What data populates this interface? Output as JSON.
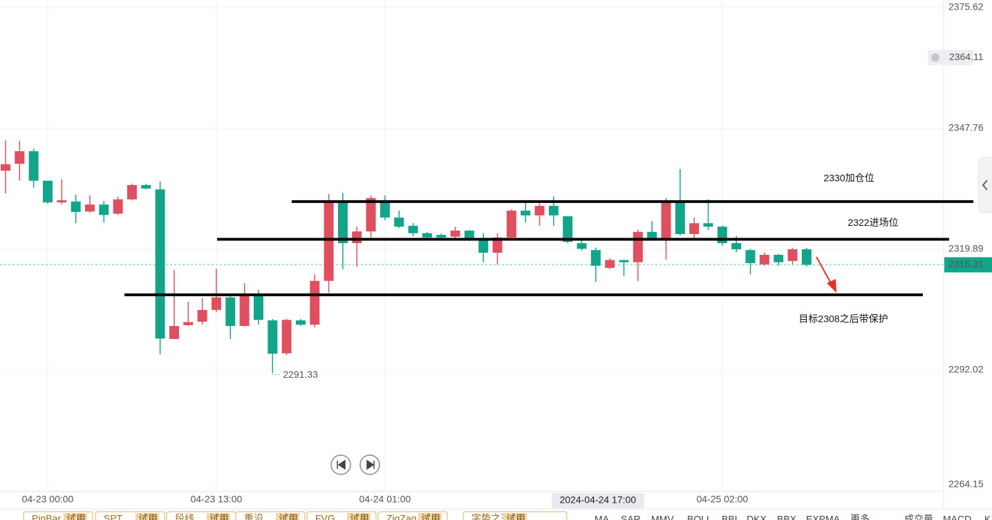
{
  "chart_data": {
    "type": "candlestick",
    "categories": [
      null,
      null,
      null,
      "04-23 00:00",
      null,
      null,
      null,
      null,
      null,
      null,
      null,
      null,
      null,
      null,
      null,
      "04-23 13:00",
      null,
      null,
      null,
      null,
      null,
      null,
      null,
      null,
      null,
      null,
      null,
      "04-24 01:00",
      null,
      null,
      null,
      null,
      null,
      null,
      null,
      null,
      null,
      null,
      null,
      null,
      null,
      null,
      null,
      null,
      null,
      null,
      null,
      null,
      null,
      null,
      null,
      "04-25 02:00",
      null,
      null,
      null,
      null,
      null,
      null
    ],
    "open": [
      2338.0,
      2339.6,
      2342.5,
      2335.7,
      2330.7,
      2330.9,
      2328.6,
      2330.2,
      2328.1,
      2331.4,
      2334.7,
      2333.7,
      2299.2,
      2302.4,
      2303.2,
      2305.9,
      2308.8,
      2302.2,
      2309.4,
      2303.5,
      2295.9,
      2303.5,
      2302.5,
      2312.6,
      2330.9,
      2321.3,
      2324.0,
      2331.2,
      2327.2,
      2325.3,
      2323.6,
      2323.2,
      2322.8,
      2324.2,
      2322.0,
      2319.1,
      2322.6,
      2328.8,
      2327.7,
      2329.9,
      2327.5,
      2321.3,
      2319.7,
      2315.6,
      2317.4,
      2316.9,
      2323.9,
      2322.4,
      2330.9,
      2323.4,
      2325.9,
      2325.1,
      2321.3,
      2319.7,
      2316.4,
      2318.6,
      2317.2,
      2319.9
    ],
    "high": [
      2345.0,
      2344.9,
      2343.1,
      2335.7,
      2336.0,
      2332.5,
      2332.3,
      2331.0,
      2332.0,
      2335.0,
      2335.0,
      2335.5,
      2315.1,
      2307.8,
      2308.6,
      2315.4,
      2309.7,
      2312.1,
      2310.6,
      2303.8,
      2303.8,
      2303.8,
      2314.1,
      2332.6,
      2332.9,
      2325.1,
      2332.3,
      2332.3,
      2328.8,
      2325.9,
      2323.9,
      2323.5,
      2325.1,
      2324.3,
      2323.6,
      2323.6,
      2329.1,
      2330.5,
      2330.5,
      2332.1,
      2327.5,
      2322.3,
      2320.3,
      2317.8,
      2317.5,
      2324.4,
      2326.4,
      2331.7,
      2338.4,
      2327.2,
      2331.4,
      2325.4,
      2322.9,
      2320.0,
      2319.1,
      2318.8,
      2320.2,
      2320.2
    ],
    "low": [
      2332.8,
      2335.7,
      2334.1,
      2330.4,
      2330.2,
      2325.9,
      2328.3,
      2326.1,
      2327.8,
      2331.2,
      2333.7,
      2295.7,
      2299.2,
      2302.2,
      2302.5,
      2305.4,
      2299.2,
      2302.1,
      2302.5,
      2291.33,
      2295.5,
      2302.2,
      2301.9,
      2309.9,
      2315.3,
      2315.9,
      2322.6,
      2326.6,
      2324.8,
      2322.9,
      2322.3,
      2322.3,
      2322.4,
      2321.8,
      2316.9,
      2316.4,
      2322.3,
      2326.1,
      2325.3,
      2325.3,
      2321.3,
      2319.6,
      2312.4,
      2315.3,
      2313.7,
      2312.6,
      2322.0,
      2317.5,
      2323.1,
      2322.4,
      2324.3,
      2320.7,
      2319.2,
      2314.1,
      2316.1,
      2316.1,
      2316.4,
      2315.9
    ],
    "close": [
      2339.5,
      2342.5,
      2335.7,
      2330.7,
      2331.2,
      2328.5,
      2330.2,
      2327.8,
      2331.4,
      2334.7,
      2333.9,
      2299.3,
      2302.2,
      2303.1,
      2305.9,
      2308.8,
      2302.2,
      2309.7,
      2303.6,
      2295.8,
      2303.6,
      2302.5,
      2312.6,
      2330.9,
      2321.3,
      2324.0,
      2331.7,
      2327.2,
      2325.1,
      2323.6,
      2322.6,
      2322.6,
      2324.2,
      2322.0,
      2319.1,
      2322.6,
      2328.8,
      2327.7,
      2329.9,
      2327.7,
      2321.6,
      2320.0,
      2316.1,
      2317.4,
      2316.9,
      2323.9,
      2322.4,
      2330.9,
      2323.4,
      2325.9,
      2325.1,
      2321.3,
      2319.9,
      2316.7,
      2318.6,
      2316.9,
      2319.9,
      2316.31
    ],
    "up_color": "#e04f5f",
    "down_color": "#12a58a",
    "ylim": [
      2264.15,
      2375.62
    ],
    "yticks": [
      2264.15,
      2292.02,
      2319.89,
      2347.76,
      2375.62
    ],
    "grid": true,
    "alert_price": 2364.11,
    "crosshair_time": "2024-04-24 17:00",
    "annotations": [
      {
        "text": "2330加仓位",
        "value": 2330.9
      },
      {
        "text": "2322进场位",
        "value": 2322.2
      },
      {
        "text": "目标2308之后带保护",
        "value": 2309.4
      }
    ]
  },
  "toolbar": {
    "trial": "试用",
    "plugins": [
      "PinBar",
      "SPT",
      "段线",
      "重沿",
      "FVG",
      "ZigZag",
      "字势之王"
    ],
    "indicators": [
      "MA",
      "SAR",
      "MMV",
      "BOLL",
      "BBI",
      "DKX",
      "BBX",
      "EXPMA",
      "更多",
      "成交量",
      "MACD",
      "K"
    ]
  }
}
